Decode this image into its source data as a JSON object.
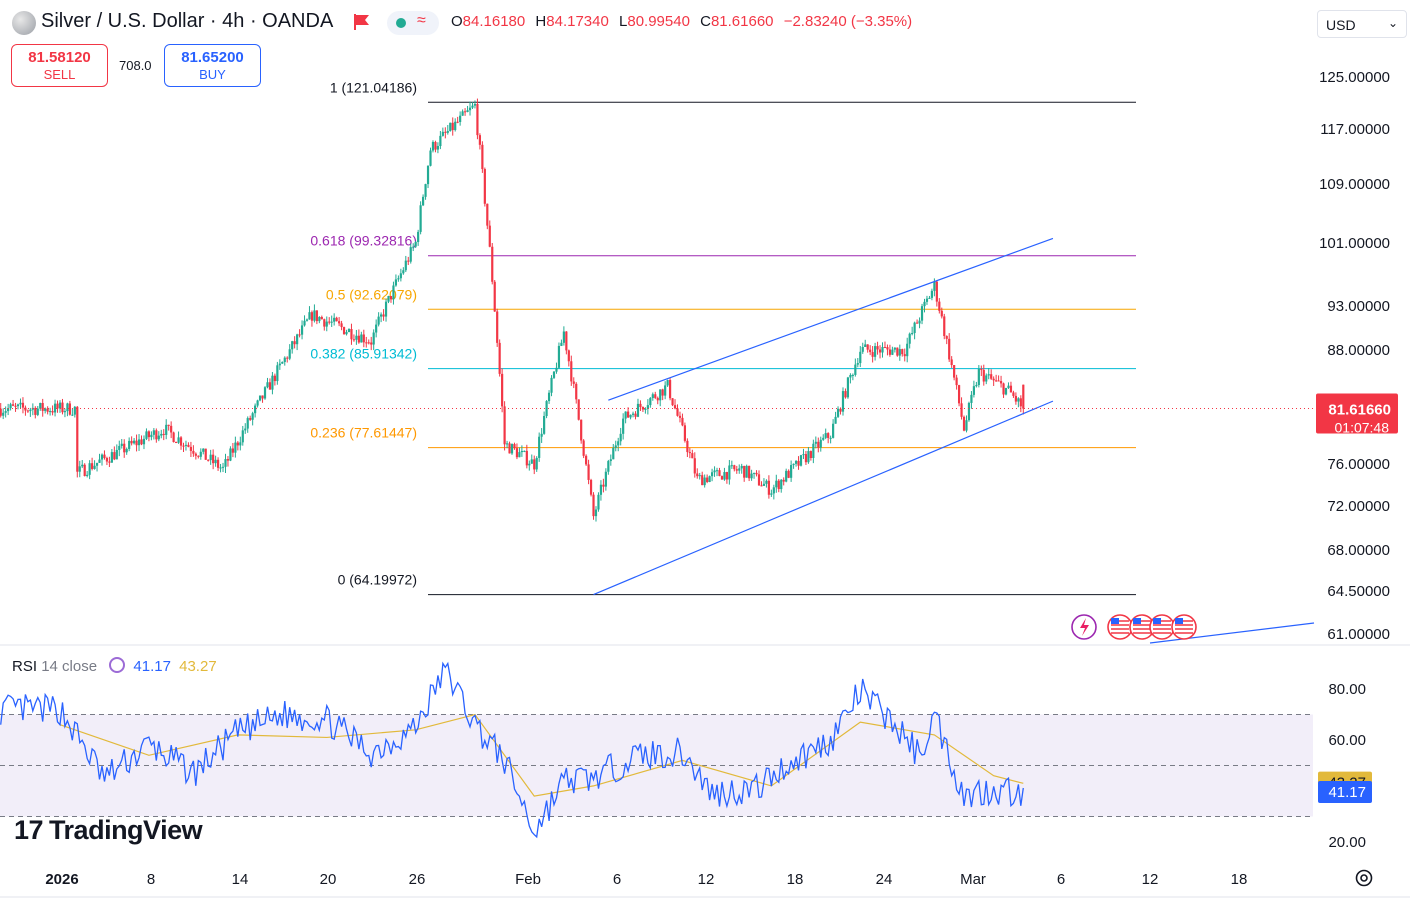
{
  "header": {
    "title": "Silver / U.S. Dollar · 4h · OANDA",
    "ohlc": [
      {
        "key": "O",
        "value": "84.16180"
      },
      {
        "key": "H",
        "value": "84.17340"
      },
      {
        "key": "L",
        "value": "80.99540"
      },
      {
        "key": "C",
        "value": "81.61660"
      }
    ],
    "change": "−2.83240 (−3.35%)",
    "flag_icon": "flag-icon",
    "status_icon": "market-status-icon"
  },
  "trade": {
    "sell_price": "81.58120",
    "sell_label": "SELL",
    "spread": "708.0",
    "buy_price": "81.65200",
    "buy_label": "BUY"
  },
  "currency": {
    "label": "USD"
  },
  "colors": {
    "up": "#22ab94",
    "down": "#f23645",
    "accent": "#2962ff",
    "rsi_line": "#2962ff",
    "rsi_ma": "#e2b93b"
  },
  "chart_data": [
    {
      "type": "candlestick",
      "title": "Silver / U.S. Dollar · 4h · OANDA",
      "price_axis_ticks": [
        "125.00000",
        "117.00000",
        "109.00000",
        "101.00000",
        "93.00000",
        "88.00000",
        "76.00000",
        "72.00000",
        "68.00000",
        "64.50000",
        "61.00000"
      ],
      "time_axis_ticks": [
        "2026",
        "8",
        "14",
        "20",
        "26",
        "Feb",
        "6",
        "12",
        "18",
        "24",
        "Mar",
        "6",
        "12",
        "18"
      ],
      "current_price": "81.61660",
      "countdown": "01:07:48",
      "fib_levels": [
        {
          "label": "1 (121.04186)",
          "value": 121.04186,
          "color": "#131722"
        },
        {
          "label": "0.618 (99.32816)",
          "value": 99.32816,
          "color": "#9c27b0"
        },
        {
          "label": "0.5 (92.62079)",
          "value": 92.62079,
          "color": "#f7a600"
        },
        {
          "label": "0.382 (85.91342)",
          "value": 85.91342,
          "color": "#00bcd4"
        },
        {
          "label": "0.236 (77.61447)",
          "value": 77.61447,
          "color": "#ff9800"
        },
        {
          "label": "0 (64.19972)",
          "value": 64.19972,
          "color": "#131722"
        }
      ],
      "channel": {
        "upper": [
          {
            "date": "Feb 7",
            "price": 82.5
          },
          {
            "date": "Mar 9",
            "price": 101.6
          }
        ],
        "lower": [
          {
            "date": "Feb 6",
            "price": 64.2
          },
          {
            "date": "Mar 9",
            "price": 82.4
          }
        ]
      },
      "key_points": [
        {
          "date": "Jan 2",
          "close": 75.0
        },
        {
          "date": "Jan 8",
          "close": 79.5
        },
        {
          "date": "Jan 12",
          "close": 75.5
        },
        {
          "date": "Jan 18",
          "close": 92.0
        },
        {
          "date": "Jan 22",
          "close": 89.0
        },
        {
          "date": "Jan 25",
          "close": 101.0
        },
        {
          "date": "Jan 26",
          "close": 114.0
        },
        {
          "date": "Jan 29",
          "close": 120.5
        },
        {
          "date": "Jan 30",
          "close": 100.0
        },
        {
          "date": "Jan 31",
          "close": 78.0
        },
        {
          "date": "Feb 2",
          "close": 76.0
        },
        {
          "date": "Feb 4",
          "close": 90.0
        },
        {
          "date": "Feb 6",
          "close": 71.0
        },
        {
          "date": "Feb 8",
          "close": 80.5
        },
        {
          "date": "Feb 11",
          "close": 84.0
        },
        {
          "date": "Feb 13",
          "close": 74.5
        },
        {
          "date": "Feb 16",
          "close": 75.5
        },
        {
          "date": "Feb 18",
          "close": 73.5
        },
        {
          "date": "Feb 22",
          "close": 79.0
        },
        {
          "date": "Feb 24",
          "close": 88.0
        },
        {
          "date": "Feb 27",
          "close": 88.0
        },
        {
          "date": "Mar 1",
          "close": 95.5
        },
        {
          "date": "Mar 3",
          "close": 79.5
        },
        {
          "date": "Mar 4",
          "close": 85.5
        },
        {
          "date": "Mar 6",
          "close": 83.5
        },
        {
          "date": "Mar 7",
          "close": 81.6
        }
      ]
    },
    {
      "type": "line",
      "title": "RSI 14 close",
      "legend_label": "RSI",
      "legend_sub": "14 close",
      "rsi_value": "41.17",
      "ma_value": "43.27",
      "axis_ticks": [
        "80.00",
        "60.00",
        "20.00"
      ],
      "band": [
        30,
        70
      ],
      "mid": 50,
      "series": [
        {
          "name": "RSI",
          "x": [
            "Jan 1",
            "Jan 4",
            "Jan 7",
            "Jan 10",
            "Jan 13",
            "Jan 16",
            "Jan 19",
            "Jan 22",
            "Jan 25",
            "Jan 27",
            "Jan 29",
            "Jan 31",
            "Feb 2",
            "Feb 4",
            "Feb 6",
            "Feb 9",
            "Feb 12",
            "Feb 14",
            "Feb 17",
            "Feb 19",
            "Feb 22",
            "Feb 24",
            "Feb 26",
            "Feb 28",
            "Mar 1",
            "Mar 3",
            "Mar 5",
            "Mar 7"
          ],
          "values": [
            72,
            45,
            58,
            47,
            63,
            70,
            68,
            55,
            65,
            88,
            66,
            52,
            24,
            44,
            45,
            54,
            55,
            39,
            41,
            50,
            60,
            79,
            68,
            54,
            70,
            38,
            41,
            39
          ]
        },
        {
          "name": "MA",
          "x": [
            "Jan 1",
            "Jan 7",
            "Jan 13",
            "Jan 19",
            "Jan 25",
            "Jan 29",
            "Feb 2",
            "Feb 6",
            "Feb 12",
            "Feb 18",
            "Feb 24",
            "Mar 1",
            "Mar 5",
            "Mar 7"
          ],
          "values": [
            66,
            54,
            62,
            61,
            64,
            70,
            38,
            42,
            52,
            42,
            67,
            62,
            46,
            43
          ]
        }
      ]
    }
  ]
}
